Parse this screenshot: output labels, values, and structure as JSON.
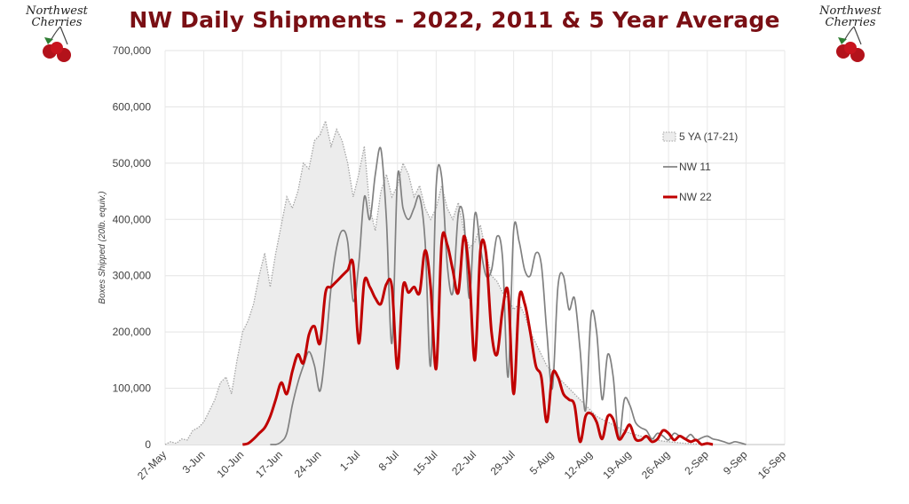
{
  "chart_data": {
    "type": "line",
    "title": "NW Daily Shipments - 2022, 2011 & 5 Year Average",
    "ylabel": "Boxes Shipped (20lb. equiv.)",
    "xlabel": "",
    "ylim": [
      0,
      700000
    ],
    "yticks": [
      "0",
      "100,000",
      "200,000",
      "300,000",
      "400,000",
      "500,000",
      "600,000",
      "700,000"
    ],
    "yticks_values": [
      0,
      100000,
      200000,
      300000,
      400000,
      500000,
      600000,
      700000
    ],
    "xticks": [
      "27-May",
      "3-Jun",
      "10-Jun",
      "17-Jun",
      "24-Jun",
      "1-Jul",
      "8-Jul",
      "15-Jul",
      "22-Jul",
      "29-Jul",
      "5-Aug",
      "12-Aug",
      "19-Aug",
      "26-Aug",
      "2-Sep",
      "9-Sep",
      "16-Sep"
    ],
    "grid": true,
    "legend_position": "right",
    "series": [
      {
        "name": "5 YA (17-21)",
        "style": "dotted-area",
        "color": "#a6a6a6",
        "fill": "#ececec",
        "points": [
          [
            "27-May",
            0
          ],
          [
            "28-May",
            5000
          ],
          [
            "29-May",
            2000
          ],
          [
            "30-May",
            10000
          ],
          [
            "31-May",
            8000
          ],
          [
            "1-Jun",
            25000
          ],
          [
            "2-Jun",
            30000
          ],
          [
            "3-Jun",
            40000
          ],
          [
            "4-Jun",
            60000
          ],
          [
            "5-Jun",
            80000
          ],
          [
            "6-Jun",
            110000
          ],
          [
            "7-Jun",
            120000
          ],
          [
            "8-Jun",
            90000
          ],
          [
            "9-Jun",
            150000
          ],
          [
            "10-Jun",
            200000
          ],
          [
            "11-Jun",
            220000
          ],
          [
            "12-Jun",
            250000
          ],
          [
            "13-Jun",
            300000
          ],
          [
            "14-Jun",
            340000
          ],
          [
            "15-Jun",
            280000
          ],
          [
            "16-Jun",
            340000
          ],
          [
            "17-Jun",
            390000
          ],
          [
            "18-Jun",
            440000
          ],
          [
            "19-Jun",
            420000
          ],
          [
            "20-Jun",
            450000
          ],
          [
            "21-Jun",
            500000
          ],
          [
            "22-Jun",
            490000
          ],
          [
            "23-Jun",
            540000
          ],
          [
            "24-Jun",
            550000
          ],
          [
            "25-Jun",
            575000
          ],
          [
            "26-Jun",
            530000
          ],
          [
            "27-Jun",
            560000
          ],
          [
            "28-Jun",
            540000
          ],
          [
            "29-Jun",
            500000
          ],
          [
            "30-Jun",
            440000
          ],
          [
            "1-Jul",
            480000
          ],
          [
            "2-Jul",
            530000
          ],
          [
            "3-Jul",
            420000
          ],
          [
            "4-Jul",
            380000
          ],
          [
            "5-Jul",
            450000
          ],
          [
            "6-Jul",
            480000
          ],
          [
            "7-Jul",
            440000
          ],
          [
            "8-Jul",
            460000
          ],
          [
            "9-Jul",
            500000
          ],
          [
            "10-Jul",
            480000
          ],
          [
            "11-Jul",
            440000
          ],
          [
            "12-Jul",
            460000
          ],
          [
            "13-Jul",
            420000
          ],
          [
            "14-Jul",
            400000
          ],
          [
            "15-Jul",
            420000
          ],
          [
            "16-Jul",
            460000
          ],
          [
            "17-Jul",
            420000
          ],
          [
            "18-Jul",
            400000
          ],
          [
            "19-Jul",
            430000
          ],
          [
            "20-Jul",
            380000
          ],
          [
            "21-Jul",
            350000
          ],
          [
            "22-Jul",
            360000
          ],
          [
            "23-Jul",
            390000
          ],
          [
            "24-Jul",
            340000
          ],
          [
            "25-Jul",
            300000
          ],
          [
            "26-Jul",
            290000
          ],
          [
            "27-Jul",
            270000
          ],
          [
            "28-Jul",
            260000
          ],
          [
            "29-Jul",
            240000
          ],
          [
            "30-Jul",
            250000
          ],
          [
            "31-Jul",
            230000
          ],
          [
            "1-Aug",
            200000
          ],
          [
            "2-Aug",
            180000
          ],
          [
            "3-Aug",
            160000
          ],
          [
            "4-Aug",
            140000
          ],
          [
            "5-Aug",
            130000
          ],
          [
            "6-Aug",
            120000
          ],
          [
            "7-Aug",
            110000
          ],
          [
            "8-Aug",
            100000
          ],
          [
            "9-Aug",
            90000
          ],
          [
            "10-Aug",
            80000
          ],
          [
            "11-Aug",
            70000
          ],
          [
            "12-Aug",
            60000
          ],
          [
            "13-Aug",
            50000
          ],
          [
            "14-Aug",
            45000
          ],
          [
            "15-Aug",
            40000
          ],
          [
            "16-Aug",
            35000
          ],
          [
            "17-Aug",
            30000
          ],
          [
            "18-Aug",
            25000
          ],
          [
            "19-Aug",
            20000
          ],
          [
            "20-Aug",
            18000
          ],
          [
            "21-Aug",
            15000
          ],
          [
            "22-Aug",
            12000
          ],
          [
            "23-Aug",
            10000
          ],
          [
            "24-Aug",
            8000
          ],
          [
            "25-Aug",
            6000
          ],
          [
            "26-Aug",
            5000
          ],
          [
            "27-Aug",
            4000
          ],
          [
            "28-Aug",
            3000
          ],
          [
            "29-Aug",
            2000
          ],
          [
            "30-Aug",
            1500
          ],
          [
            "31-Aug",
            1000
          ],
          [
            "1-Sep",
            500
          ],
          [
            "2-Sep",
            0
          ]
        ]
      },
      {
        "name": "NW 11",
        "style": "line",
        "color": "#808080",
        "points": [
          [
            "15-Jun",
            0
          ],
          [
            "16-Jun",
            0
          ],
          [
            "17-Jun",
            5000
          ],
          [
            "18-Jun",
            20000
          ],
          [
            "19-Jun",
            70000
          ],
          [
            "20-Jun",
            110000
          ],
          [
            "21-Jun",
            140000
          ],
          [
            "22-Jun",
            165000
          ],
          [
            "23-Jun",
            140000
          ],
          [
            "24-Jun",
            95000
          ],
          [
            "25-Jun",
            170000
          ],
          [
            "26-Jun",
            280000
          ],
          [
            "27-Jun",
            350000
          ],
          [
            "28-Jun",
            380000
          ],
          [
            "29-Jun",
            360000
          ],
          [
            "30-Jun",
            255000
          ],
          [
            "1-Jul",
            320000
          ],
          [
            "2-Jul",
            440000
          ],
          [
            "3-Jul",
            400000
          ],
          [
            "4-Jul",
            480000
          ],
          [
            "5-Jul",
            525000
          ],
          [
            "6-Jul",
            400000
          ],
          [
            "7-Jul",
            180000
          ],
          [
            "8-Jul",
            475000
          ],
          [
            "9-Jul",
            420000
          ],
          [
            "10-Jul",
            400000
          ],
          [
            "11-Jul",
            420000
          ],
          [
            "12-Jul",
            440000
          ],
          [
            "13-Jul",
            360000
          ],
          [
            "14-Jul",
            140000
          ],
          [
            "15-Jul",
            460000
          ],
          [
            "16-Jul",
            475000
          ],
          [
            "17-Jul",
            320000
          ],
          [
            "18-Jul",
            270000
          ],
          [
            "19-Jul",
            410000
          ],
          [
            "20-Jul",
            400000
          ],
          [
            "21-Jul",
            260000
          ],
          [
            "22-Jul",
            410000
          ],
          [
            "23-Jul",
            350000
          ],
          [
            "24-Jul",
            300000
          ],
          [
            "25-Jul",
            310000
          ],
          [
            "26-Jul",
            370000
          ],
          [
            "27-Jul",
            330000
          ],
          [
            "28-Jul",
            120000
          ],
          [
            "29-Jul",
            380000
          ],
          [
            "30-Jul",
            360000
          ],
          [
            "31-Jul",
            310000
          ],
          [
            "1-Aug",
            300000
          ],
          [
            "2-Aug",
            340000
          ],
          [
            "3-Aug",
            320000
          ],
          [
            "4-Aug",
            200000
          ],
          [
            "5-Aug",
            100000
          ],
          [
            "6-Aug",
            280000
          ],
          [
            "7-Aug",
            300000
          ],
          [
            "8-Aug",
            240000
          ],
          [
            "9-Aug",
            260000
          ],
          [
            "10-Aug",
            170000
          ],
          [
            "11-Aug",
            60000
          ],
          [
            "12-Aug",
            230000
          ],
          [
            "13-Aug",
            200000
          ],
          [
            "14-Aug",
            80000
          ],
          [
            "15-Aug",
            160000
          ],
          [
            "16-Aug",
            120000
          ],
          [
            "17-Aug",
            10000
          ],
          [
            "18-Aug",
            80000
          ],
          [
            "19-Aug",
            70000
          ],
          [
            "20-Aug",
            40000
          ],
          [
            "21-Aug",
            30000
          ],
          [
            "22-Aug",
            25000
          ],
          [
            "23-Aug",
            10000
          ],
          [
            "24-Aug",
            20000
          ],
          [
            "25-Aug",
            15000
          ],
          [
            "26-Aug",
            8000
          ],
          [
            "27-Aug",
            20000
          ],
          [
            "28-Aug",
            15000
          ],
          [
            "29-Aug",
            10000
          ],
          [
            "30-Aug",
            18000
          ],
          [
            "31-Aug",
            8000
          ],
          [
            "1-Sep",
            12000
          ],
          [
            "2-Sep",
            15000
          ],
          [
            "3-Sep",
            10000
          ],
          [
            "4-Sep",
            8000
          ],
          [
            "5-Sep",
            5000
          ],
          [
            "6-Sep",
            2000
          ],
          [
            "7-Sep",
            5000
          ],
          [
            "8-Sep",
            3000
          ],
          [
            "9-Sep",
            0
          ]
        ]
      },
      {
        "name": "NW 22",
        "style": "line",
        "color": "#c00000",
        "points": [
          [
            "10-Jun",
            0
          ],
          [
            "11-Jun",
            2000
          ],
          [
            "12-Jun",
            10000
          ],
          [
            "13-Jun",
            20000
          ],
          [
            "14-Jun",
            30000
          ],
          [
            "15-Jun",
            50000
          ],
          [
            "16-Jun",
            80000
          ],
          [
            "17-Jun",
            110000
          ],
          [
            "18-Jun",
            90000
          ],
          [
            "19-Jun",
            130000
          ],
          [
            "20-Jun",
            160000
          ],
          [
            "21-Jun",
            145000
          ],
          [
            "22-Jun",
            195000
          ],
          [
            "23-Jun",
            210000
          ],
          [
            "24-Jun",
            180000
          ],
          [
            "25-Jun",
            270000
          ],
          [
            "26-Jun",
            280000
          ],
          [
            "27-Jun",
            290000
          ],
          [
            "28-Jun",
            300000
          ],
          [
            "29-Jun",
            310000
          ],
          [
            "30-Jun",
            320000
          ],
          [
            "1-Jul",
            180000
          ],
          [
            "2-Jul",
            290000
          ],
          [
            "3-Jul",
            280000
          ],
          [
            "4-Jul",
            260000
          ],
          [
            "5-Jul",
            250000
          ],
          [
            "6-Jul",
            285000
          ],
          [
            "7-Jul",
            280000
          ],
          [
            "8-Jul",
            135000
          ],
          [
            "9-Jul",
            280000
          ],
          [
            "10-Jul",
            270000
          ],
          [
            "11-Jul",
            280000
          ],
          [
            "12-Jul",
            270000
          ],
          [
            "13-Jul",
            345000
          ],
          [
            "14-Jul",
            280000
          ],
          [
            "15-Jul",
            135000
          ],
          [
            "16-Jul",
            360000
          ],
          [
            "17-Jul",
            355000
          ],
          [
            "18-Jul",
            310000
          ],
          [
            "19-Jul",
            270000
          ],
          [
            "20-Jul",
            370000
          ],
          [
            "21-Jul",
            300000
          ],
          [
            "22-Jul",
            150000
          ],
          [
            "23-Jul",
            345000
          ],
          [
            "24-Jul",
            340000
          ],
          [
            "25-Jul",
            200000
          ],
          [
            "26-Jul",
            160000
          ],
          [
            "27-Jul",
            240000
          ],
          [
            "28-Jul",
            270000
          ],
          [
            "29-Jul",
            90000
          ],
          [
            "30-Jul",
            260000
          ],
          [
            "31-Jul",
            250000
          ],
          [
            "1-Aug",
            200000
          ],
          [
            "2-Aug",
            140000
          ],
          [
            "3-Aug",
            120000
          ],
          [
            "4-Aug",
            40000
          ],
          [
            "5-Aug",
            125000
          ],
          [
            "6-Aug",
            120000
          ],
          [
            "7-Aug",
            90000
          ],
          [
            "8-Aug",
            80000
          ],
          [
            "9-Aug",
            70000
          ],
          [
            "10-Aug",
            5000
          ],
          [
            "11-Aug",
            50000
          ],
          [
            "12-Aug",
            55000
          ],
          [
            "13-Aug",
            40000
          ],
          [
            "14-Aug",
            10000
          ],
          [
            "15-Aug",
            50000
          ],
          [
            "16-Aug",
            45000
          ],
          [
            "17-Aug",
            10000
          ],
          [
            "18-Aug",
            20000
          ],
          [
            "19-Aug",
            35000
          ],
          [
            "20-Aug",
            10000
          ],
          [
            "21-Aug",
            8000
          ],
          [
            "22-Aug",
            15000
          ],
          [
            "23-Aug",
            5000
          ],
          [
            "24-Aug",
            10000
          ],
          [
            "25-Aug",
            25000
          ],
          [
            "26-Aug",
            20000
          ],
          [
            "27-Aug",
            8000
          ],
          [
            "28-Aug",
            15000
          ],
          [
            "29-Aug",
            10000
          ],
          [
            "30-Aug",
            5000
          ],
          [
            "31-Aug",
            8000
          ],
          [
            "1-Sep",
            0
          ],
          [
            "2-Sep",
            2000
          ],
          [
            "3-Sep",
            0
          ]
        ]
      }
    ]
  },
  "logos": {
    "left_text_line1": "Northwest",
    "left_text_line2": "Cherries",
    "right_text_line1": "Northwest",
    "right_text_line2": "Cherries",
    "cherry_color": "#b3121b",
    "leaf_color": "#2e7d32"
  }
}
